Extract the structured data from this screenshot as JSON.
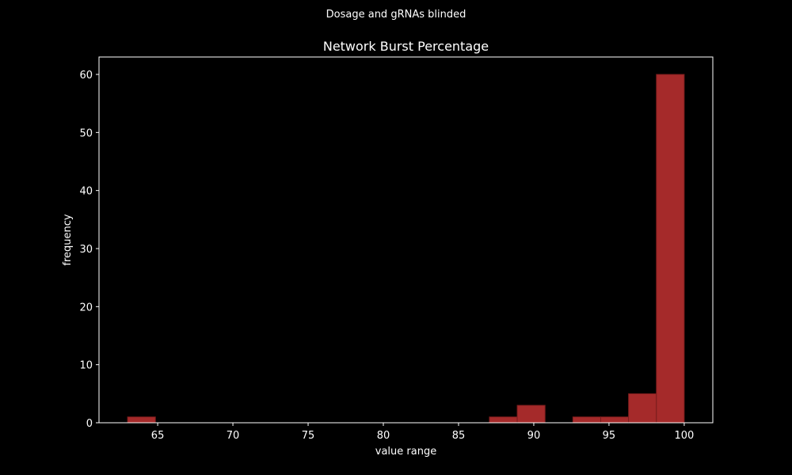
{
  "colors": {
    "background": "#000000",
    "foreground": "#ffffff",
    "bar_fill": "#a52a2a",
    "bar_edge": "#7a1c1c"
  },
  "chart_data": {
    "type": "bar",
    "suptitle": "Dosage and gRNAs blinded",
    "title": "Network Burst Percentage",
    "xlabel": "value range",
    "ylabel": "frequency",
    "xlim": [
      61.1,
      101.9
    ],
    "ylim": [
      0,
      63
    ],
    "xticks": [
      65,
      70,
      75,
      80,
      85,
      90,
      95,
      100
    ],
    "yticks": [
      0,
      10,
      20,
      30,
      40,
      50,
      60
    ],
    "bins": [
      {
        "start": 63.0,
        "end": 64.85,
        "count": 1
      },
      {
        "start": 64.85,
        "end": 66.7,
        "count": 0
      },
      {
        "start": 66.7,
        "end": 68.55,
        "count": 0
      },
      {
        "start": 68.55,
        "end": 70.4,
        "count": 0
      },
      {
        "start": 70.4,
        "end": 72.25,
        "count": 0
      },
      {
        "start": 72.25,
        "end": 74.1,
        "count": 0
      },
      {
        "start": 74.1,
        "end": 75.95,
        "count": 0
      },
      {
        "start": 75.95,
        "end": 77.8,
        "count": 0
      },
      {
        "start": 77.8,
        "end": 79.65,
        "count": 0
      },
      {
        "start": 79.65,
        "end": 81.5,
        "count": 0
      },
      {
        "start": 81.5,
        "end": 83.35,
        "count": 0
      },
      {
        "start": 83.35,
        "end": 85.2,
        "count": 0
      },
      {
        "start": 85.2,
        "end": 87.05,
        "count": 0
      },
      {
        "start": 87.05,
        "end": 88.9,
        "count": 1
      },
      {
        "start": 88.9,
        "end": 90.75,
        "count": 3
      },
      {
        "start": 90.75,
        "end": 92.6,
        "count": 0
      },
      {
        "start": 92.6,
        "end": 94.45,
        "count": 1
      },
      {
        "start": 94.45,
        "end": 96.3,
        "count": 1
      },
      {
        "start": 96.3,
        "end": 98.15,
        "count": 5
      },
      {
        "start": 98.15,
        "end": 100.0,
        "count": 60
      }
    ]
  }
}
